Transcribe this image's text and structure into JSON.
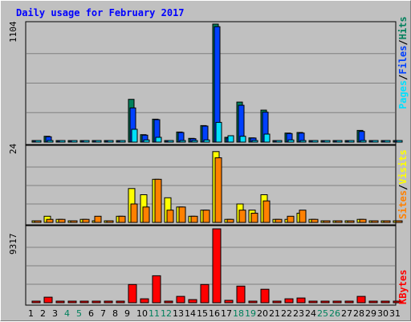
{
  "title": "Daily usage for February 2017",
  "colors": {
    "hits": "#00805c",
    "files": "#0040ff",
    "pages": "#00e0ff",
    "visits": "#ffff00",
    "sites": "#ff8000",
    "kbytes": "#ff0000",
    "title": "#0000ff",
    "weekend": "#00805c",
    "weekday": "#000000"
  },
  "legend": {
    "top": {
      "pages": "Pages",
      "sep1": "/",
      "files": "Files",
      "sep2": "/",
      "hits": "Hits"
    },
    "middle": {
      "sites": "Sites",
      "sep": "/",
      "visits": "Visits"
    },
    "bottom": {
      "kbytes": "KBytes"
    }
  },
  "chart_data": {
    "type": "bar",
    "title": "Daily usage for February 2017",
    "x": [
      "1",
      "2",
      "3",
      "4",
      "5",
      "6",
      "7",
      "8",
      "9",
      "10",
      "11",
      "12",
      "13",
      "14",
      "15",
      "16",
      "17",
      "18",
      "19",
      "20",
      "21",
      "22",
      "23",
      "24",
      "25",
      "26",
      "27",
      "28",
      "29",
      "30",
      "31"
    ],
    "weekend_days": [
      4,
      5,
      11,
      12,
      18,
      19,
      25,
      26
    ],
    "panels": [
      {
        "name": "top",
        "ymax_label": "1104",
        "ymax": 1104,
        "series": [
          {
            "name": "Hits",
            "values": [
              0,
              55,
              6,
              0,
              6,
              6,
              0,
              6,
              400,
              70,
              215,
              10,
              95,
              35,
              155,
              1104,
              45,
              375,
              40,
              300,
              6,
              85,
              90,
              8,
              0,
              0,
              0,
              110,
              0,
              0,
              0
            ]
          },
          {
            "name": "Files",
            "values": [
              0,
              50,
              5,
              0,
              5,
              5,
              0,
              5,
              320,
              65,
              210,
              9,
              90,
              32,
              150,
              1080,
              40,
              345,
              38,
              280,
              5,
              80,
              85,
              7,
              0,
              0,
              0,
              100,
              0,
              0,
              0
            ]
          },
          {
            "name": "Pages",
            "values": [
              0,
              0,
              0,
              0,
              0,
              0,
              0,
              0,
              120,
              20,
              45,
              0,
              0,
              10,
              20,
              185,
              60,
              55,
              0,
              75,
              0,
              20,
              15,
              0,
              0,
              0,
              0,
              0,
              0,
              0,
              0
            ]
          }
        ]
      },
      {
        "name": "middle",
        "ymax_label": "24",
        "ymax": 24,
        "series": [
          {
            "name": "Visits",
            "values": [
              0,
              2,
              1,
              0,
              1,
              0,
              0,
              2,
              11,
              9,
              14,
              8,
              5,
              2,
              4,
              23,
              1,
              6,
              4,
              9,
              1,
              1,
              3,
              1,
              0,
              0,
              0,
              1,
              0,
              0,
              0
            ]
          },
          {
            "name": "Sites",
            "values": [
              0,
              1,
              1,
              0,
              1,
              2,
              0,
              2,
              6,
              5,
              14,
              4,
              5,
              2,
              4,
              21,
              1,
              4,
              3,
              7,
              1,
              2,
              4,
              1,
              0,
              0,
              0,
              1,
              0,
              0,
              0
            ]
          }
        ]
      },
      {
        "name": "bottom",
        "ymax_label": "9317",
        "ymax": 9317,
        "series": [
          {
            "name": "KBytes",
            "values": [
              0,
              700,
              100,
              0,
              100,
              100,
              0,
              100,
              2300,
              500,
              3400,
              100,
              800,
              400,
              2300,
              9317,
              300,
              2100,
              100,
              1700,
              100,
              500,
              600,
              100,
              0,
              0,
              0,
              800,
              0,
              0,
              0
            ]
          }
        ]
      }
    ]
  }
}
